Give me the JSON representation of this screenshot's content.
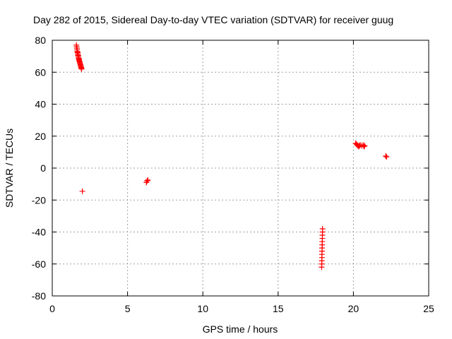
{
  "chart_data": {
    "type": "scatter",
    "title": "Day 282 of 2015, Sidereal Day-to-day VTEC variation (SDTVAR) for receiver guug",
    "xlabel": "GPS time / hours",
    "ylabel": "SDTVAR / TECUs",
    "xlim": [
      0,
      25
    ],
    "ylim": [
      -80,
      80
    ],
    "xticks": [
      0,
      5,
      10,
      15,
      20,
      25
    ],
    "yticks": [
      -80,
      -60,
      -40,
      -20,
      0,
      20,
      40,
      60,
      80
    ],
    "grid": true,
    "marker": "plus",
    "marker_color": "#ff0000",
    "series": [
      {
        "points": [
          [
            1.6,
            77
          ],
          [
            1.62,
            76
          ],
          [
            1.64,
            75
          ],
          [
            1.65,
            74
          ],
          [
            1.66,
            73
          ],
          [
            1.68,
            72.5
          ],
          [
            1.69,
            72
          ],
          [
            1.7,
            71
          ],
          [
            1.72,
            70.5
          ],
          [
            1.73,
            70
          ],
          [
            1.75,
            69
          ],
          [
            1.76,
            68.5
          ],
          [
            1.78,
            68
          ],
          [
            1.79,
            67.5
          ],
          [
            1.8,
            67
          ],
          [
            1.82,
            66.5
          ],
          [
            1.83,
            66
          ],
          [
            1.85,
            65.5
          ],
          [
            1.86,
            65
          ],
          [
            1.88,
            64.5
          ],
          [
            1.89,
            64
          ],
          [
            1.9,
            63.5
          ],
          [
            1.92,
            63
          ],
          [
            1.93,
            62.5
          ],
          [
            1.95,
            62
          ],
          [
            2.0,
            -14.5
          ],
          [
            6.25,
            -9
          ],
          [
            6.3,
            -8
          ],
          [
            6.35,
            -7.5
          ],
          [
            17.95,
            -38
          ],
          [
            17.95,
            -40
          ],
          [
            17.94,
            -42
          ],
          [
            17.94,
            -44
          ],
          [
            17.93,
            -46
          ],
          [
            17.93,
            -48
          ],
          [
            17.92,
            -50
          ],
          [
            17.92,
            -52
          ],
          [
            17.91,
            -54
          ],
          [
            17.91,
            -56
          ],
          [
            17.9,
            -58
          ],
          [
            17.9,
            -60
          ],
          [
            17.89,
            -62
          ],
          [
            20.15,
            15.5
          ],
          [
            20.2,
            15
          ],
          [
            20.25,
            14.5
          ],
          [
            20.3,
            14
          ],
          [
            20.35,
            13.5
          ],
          [
            20.4,
            14
          ],
          [
            20.45,
            14.5
          ],
          [
            20.55,
            14
          ],
          [
            20.65,
            14.5
          ],
          [
            20.7,
            13.5
          ],
          [
            20.75,
            14
          ],
          [
            22.15,
            7.5
          ],
          [
            22.2,
            7
          ]
        ]
      }
    ]
  }
}
